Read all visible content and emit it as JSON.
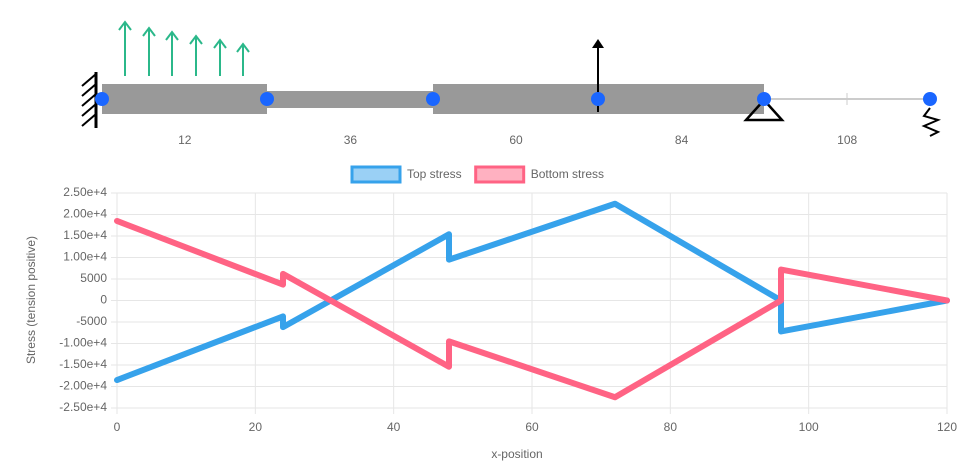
{
  "beam": {
    "ticks": [
      12,
      36,
      60,
      84,
      108
    ]
  },
  "chart_data": {
    "type": "line",
    "x": [
      0,
      24,
      24,
      48,
      48,
      72,
      96,
      96,
      120
    ],
    "series": [
      {
        "name": "Top stress",
        "color": "#36a2eb",
        "values": [
          -18500,
          -3700,
          -6200,
          15400,
          9500,
          22500,
          0,
          -7200,
          0
        ]
      },
      {
        "name": "Bottom stress",
        "color": "#ff6384",
        "values": [
          18500,
          3700,
          6200,
          -15400,
          -9500,
          -22500,
          0,
          7200,
          0
        ]
      }
    ],
    "xlabel": "x-position",
    "ylabel": "Stress (tension positive)",
    "xlim": [
      0,
      120
    ],
    "xticks": [
      0,
      20,
      40,
      60,
      80,
      100,
      120
    ],
    "ylim": [
      -25000,
      25000
    ],
    "yticks": [
      {
        "value": 25000,
        "label": "2.50e+4"
      },
      {
        "value": 20000,
        "label": "2.00e+4"
      },
      {
        "value": 15000,
        "label": "1.50e+4"
      },
      {
        "value": 10000,
        "label": "1.00e+4"
      },
      5000,
      0,
      -5000,
      {
        "value": -10000,
        "label": "-1.00e+4"
      },
      {
        "value": -15000,
        "label": "-1.50e+4"
      },
      {
        "value": -20000,
        "label": "-2.00e+4"
      },
      {
        "value": -25000,
        "label": "-2.50e+4"
      }
    ],
    "grid": true
  }
}
